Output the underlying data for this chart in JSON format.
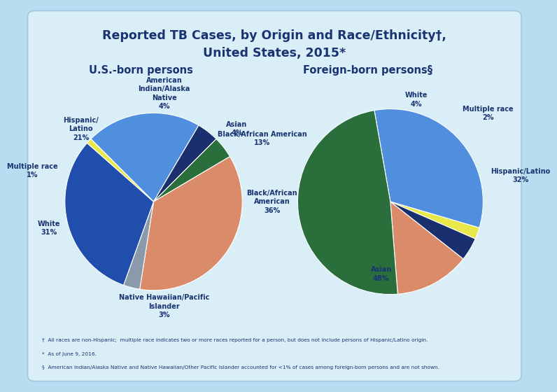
{
  "title_line1": "Reported TB Cases, by Origin and Race/Ethnicity†,",
  "title_line2": "United States, 2015*",
  "title_color": "#1a3472",
  "background_color": "#b8ddf0",
  "box_color": "#daeef8",
  "subtitle_us": "U.S.-born persons",
  "subtitle_foreign": "Foreign-born persons§",
  "us_values": [
    21,
    4,
    4,
    36,
    3,
    31,
    1
  ],
  "us_colors": [
    "#4f8fde",
    "#1a2f6e",
    "#2a6e3c",
    "#d98b6a",
    "#8a9aaa",
    "#1f4eac",
    "#e8e84a"
  ],
  "us_labels": [
    "Hispanic/\nLatino\n21%",
    "American\nIndian/Alaska\nNative\n4%",
    "Asian\n4%",
    "Black/African\nAmerican\n36%",
    "Native Hawaiian/Pacific\nIslander\n3%",
    "White\n31%",
    "Multiple race\n1%"
  ],
  "foreign_values": [
    32,
    2,
    4,
    13,
    48
  ],
  "foreign_colors": [
    "#4f8fde",
    "#e8e84a",
    "#1a2f6e",
    "#d98b6a",
    "#2a6e3c"
  ],
  "foreign_labels": [
    "Hispanic/Latino\n32%",
    "Multiple race\n2%",
    "White\n4%",
    "Black/African American\n13%",
    "Asian\n48%"
  ],
  "footnote1": "†  All races are non-Hispanic;  multiple race indicates two or more races reported for a person, but does not include persons of Hispanic/Latino origin.",
  "footnote2": "*  As of June 9, 2016.",
  "footnote3": "§  American Indian/Alaska Native and Native Hawaiian/Other Pacific Islander accounted for <1% of cases among foreign-born persons and are not shown."
}
